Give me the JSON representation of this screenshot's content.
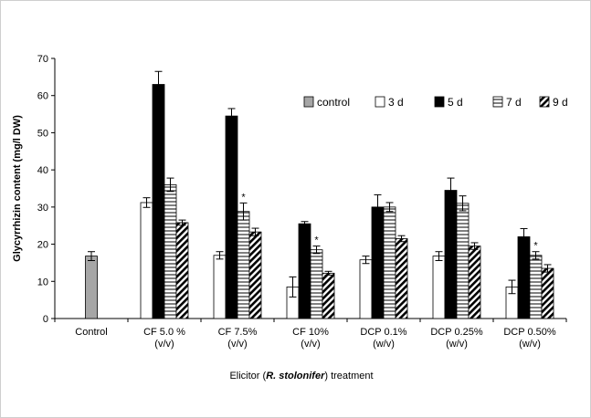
{
  "chart_data": {
    "type": "bar",
    "ylabel": "Glycyrrhizin content (mg/l DW)",
    "xlabel": {
      "prefix": "Elicitor (",
      "italic": "R. stolonifer",
      "suffix": ") treatment"
    },
    "ylim": [
      0,
      70
    ],
    "yticks": [
      0,
      10,
      20,
      30,
      40,
      50,
      60,
      70
    ],
    "grid": false,
    "legend_position": "top-right",
    "categories": [
      [
        "Control"
      ],
      [
        "CF 5.0 %",
        "(v/v)"
      ],
      [
        "CF 7.5%",
        "(v/v)"
      ],
      [
        "CF 10%",
        "(v/v)"
      ],
      [
        "DCP 0.1%",
        "(w/v)"
      ],
      [
        "DCP 0.25%",
        "(w/v)"
      ],
      [
        "DCP 0.50%",
        "(w/v)"
      ]
    ],
    "series": [
      {
        "name": "control",
        "pattern": "gray",
        "values": [
          16.8,
          null,
          null,
          null,
          null,
          null,
          null
        ],
        "errors": [
          1.2,
          null,
          null,
          null,
          null,
          null,
          null
        ]
      },
      {
        "name": "3 d",
        "pattern": "white",
        "values": [
          null,
          31.2,
          17.0,
          8.5,
          15.8,
          16.8,
          8.5
        ],
        "errors": [
          null,
          1.3,
          1.0,
          2.7,
          1.0,
          1.2,
          1.8
        ]
      },
      {
        "name": "5 d",
        "pattern": "black",
        "values": [
          null,
          63.0,
          54.5,
          25.5,
          30.0,
          34.5,
          22.0
        ],
        "errors": [
          null,
          3.5,
          2.0,
          0.6,
          3.3,
          3.3,
          2.2
        ]
      },
      {
        "name": "7 d",
        "pattern": "hlines",
        "values": [
          null,
          36.0,
          28.8,
          18.5,
          30.0,
          31.0,
          17.0
        ],
        "errors": [
          null,
          1.8,
          2.3,
          1.0,
          1.2,
          2.0,
          1.0
        ]
      },
      {
        "name": "9 d",
        "pattern": "diag",
        "values": [
          null,
          25.8,
          23.3,
          12.2,
          21.5,
          19.5,
          13.5
        ],
        "errors": [
          null,
          0.7,
          1.0,
          0.5,
          0.8,
          0.9,
          1.0
        ]
      }
    ],
    "annotations": [
      {
        "text": "*",
        "category": 2,
        "series": 3
      },
      {
        "text": "*",
        "category": 3,
        "series": 3
      },
      {
        "text": "*",
        "category": 6,
        "series": 3
      }
    ]
  }
}
